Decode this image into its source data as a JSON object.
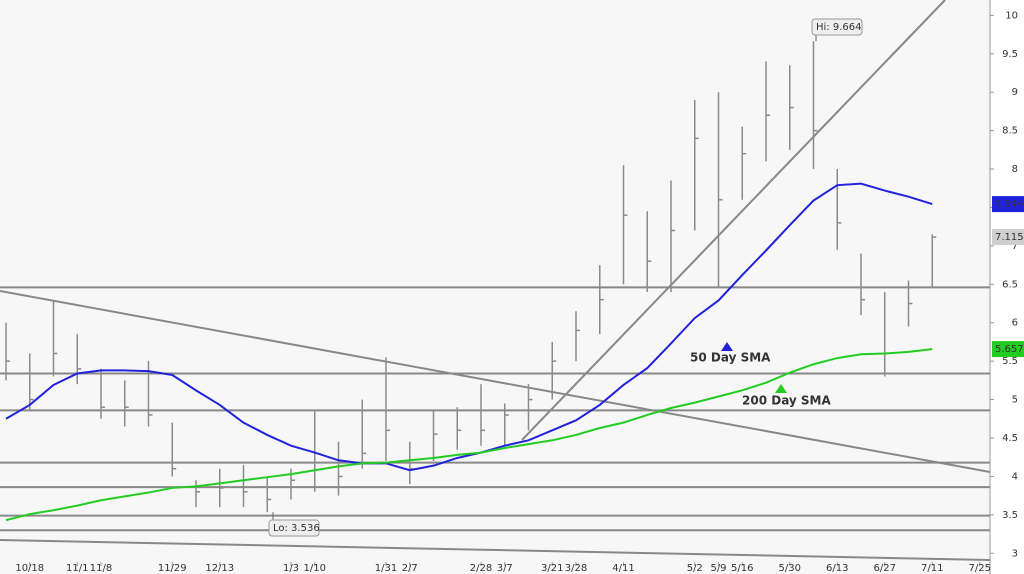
{
  "chart_data": {
    "type": "ohlc",
    "categories": [
      null,
      "10/18",
      null,
      "11/1",
      "11/8",
      null,
      null,
      "11/29",
      null,
      "12/13",
      null,
      null,
      "1/3",
      "1/10",
      null,
      null,
      "1/31",
      "2/7",
      null,
      null,
      "2/28",
      "3/7",
      null,
      "3/21",
      "3/28",
      null,
      "4/11",
      null,
      null,
      "5/2",
      "5/9",
      "5/16",
      null,
      "5/30",
      null,
      "6/13",
      null,
      "6/27",
      null,
      "7/11",
      null,
      "7/25"
    ],
    "high": [
      6.0,
      5.6,
      6.3,
      5.85,
      5.4,
      5.25,
      5.5,
      4.7,
      3.95,
      4.1,
      4.15,
      4.0,
      4.1,
      4.85,
      4.45,
      5.0,
      5.55,
      4.45,
      4.85,
      4.9,
      5.2,
      4.95,
      5.2,
      5.75,
      6.15,
      6.75,
      8.05,
      7.45,
      7.85,
      8.9,
      9.0,
      8.55,
      9.4,
      9.35,
      9.664,
      8.0,
      6.9,
      6.4,
      6.55,
      7.15,
      null,
      null
    ],
    "low": [
      5.25,
      4.85,
      5.3,
      5.2,
      4.75,
      4.65,
      4.65,
      4.0,
      3.6,
      3.6,
      3.6,
      3.536,
      3.7,
      3.8,
      3.75,
      4.1,
      4.2,
      3.9,
      4.2,
      4.35,
      4.4,
      4.4,
      4.6,
      5.0,
      5.5,
      5.85,
      6.5,
      6.4,
      6.4,
      7.2,
      6.45,
      7.6,
      8.1,
      8.25,
      8.0,
      6.95,
      6.1,
      5.3,
      5.95,
      6.45,
      null,
      null
    ],
    "close": [
      5.5,
      5.0,
      5.6,
      5.4,
      4.9,
      4.9,
      4.8,
      4.1,
      3.8,
      3.85,
      3.8,
      3.7,
      3.95,
      4.3,
      4.0,
      4.3,
      4.6,
      4.1,
      4.55,
      4.6,
      4.6,
      4.8,
      5.0,
      5.5,
      5.9,
      6.3,
      7.4,
      6.8,
      7.2,
      8.4,
      7.6,
      8.2,
      8.7,
      8.8,
      8.5,
      7.3,
      6.3,
      5.6,
      6.25,
      7.115,
      null,
      null
    ],
    "color": "#8a8a8a",
    "series": [
      {
        "name": "50 Day SMA",
        "color": "#2222dd",
        "values": [
          4.75,
          4.93,
          5.19,
          5.34,
          5.38,
          5.38,
          5.37,
          5.32,
          5.12,
          4.93,
          4.7,
          4.54,
          4.4,
          4.31,
          4.21,
          4.17,
          4.17,
          4.08,
          4.14,
          4.24,
          4.31,
          4.4,
          4.47,
          4.6,
          4.73,
          4.93,
          5.19,
          5.41,
          5.73,
          6.06,
          6.29,
          6.62,
          6.94,
          7.27,
          7.59,
          7.79,
          7.81,
          7.72,
          7.64,
          7.544,
          null,
          null
        ]
      },
      {
        "name": "200 Day SMA",
        "color": "#22cc22",
        "values": [
          3.43,
          3.51,
          3.56,
          3.62,
          3.69,
          3.74,
          3.79,
          3.85,
          3.87,
          3.91,
          3.95,
          3.99,
          4.03,
          4.08,
          4.13,
          4.17,
          4.18,
          4.21,
          4.24,
          4.28,
          4.31,
          4.37,
          4.42,
          4.47,
          4.54,
          4.63,
          4.7,
          4.8,
          4.89,
          4.96,
          5.04,
          5.12,
          5.22,
          5.35,
          5.46,
          5.54,
          5.59,
          5.6,
          5.62,
          5.657,
          null,
          null
        ]
      }
    ],
    "levels": [
      6.46,
      5.34,
      4.86,
      4.18,
      3.86,
      3.49,
      3.3
    ],
    "ylim": [
      2.73,
      10.2
    ],
    "yticks": [
      3,
      3.5,
      4,
      4.5,
      5,
      5.5,
      6,
      6.5,
      7,
      7.5,
      8,
      8.5,
      9,
      9.5,
      10
    ],
    "annotations": {
      "high": "Hi: 9.664",
      "low": "Lo: 3.536"
    }
  }
}
